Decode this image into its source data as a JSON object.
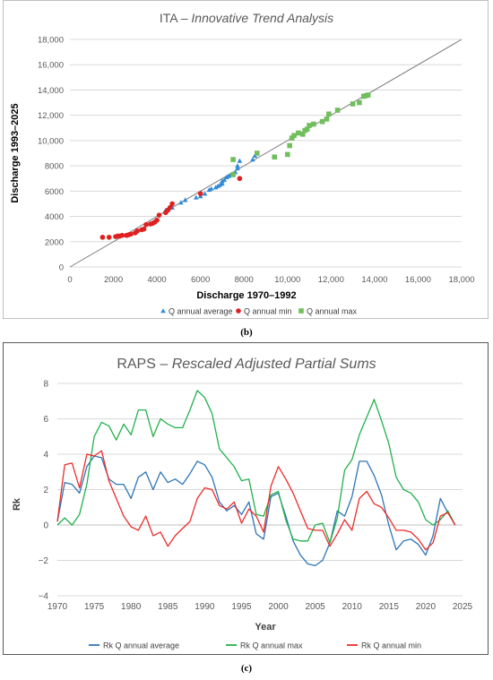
{
  "panels": {
    "b_label": "(b)",
    "c_label": "(c)"
  },
  "chart_data": [
    {
      "type": "scatter",
      "title_prefix": "ITA – ",
      "title_italic": "Innovative Trend Analysis",
      "xlabel": "Discharge 1970–1992",
      "ylabel": "Discharge 1993–2025",
      "xlim": [
        0,
        18000
      ],
      "ylim": [
        0,
        18000
      ],
      "x_ticks": [
        0,
        2000,
        4000,
        6000,
        8000,
        10000,
        12000,
        14000,
        16000,
        18000
      ],
      "y_ticks": [
        0,
        2000,
        4000,
        6000,
        8000,
        10000,
        12000,
        14000,
        16000,
        18000
      ],
      "x_tick_labels": [
        "0",
        "2000",
        "4000",
        "6000",
        "8000",
        "10,000",
        "12,000",
        "14,000",
        "16,000",
        "18,000"
      ],
      "y_tick_labels": [
        "0",
        "2000",
        "4000",
        "6000",
        "8000",
        "10,000",
        "12,000",
        "14,000",
        "16,000",
        "18,000"
      ],
      "grid": "horizontal",
      "reference_line": "1:1",
      "legend_position": "bottom",
      "series": [
        {
          "name": "Q annual average",
          "color": "#2e8bd8",
          "marker": "triangle",
          "points": [
            [
              4400,
              4500
            ],
            [
              4700,
              4700
            ],
            [
              5100,
              5100
            ],
            [
              5300,
              5300
            ],
            [
              5800,
              5500
            ],
            [
              6000,
              5600
            ],
            [
              6200,
              5800
            ],
            [
              6400,
              6100
            ],
            [
              6500,
              6200
            ],
            [
              6700,
              6300
            ],
            [
              6800,
              6400
            ],
            [
              6900,
              6500
            ],
            [
              7000,
              6600
            ],
            [
              7000,
              6800
            ],
            [
              7100,
              6900
            ],
            [
              7200,
              7100
            ],
            [
              7300,
              7200
            ],
            [
              7400,
              7300
            ],
            [
              7600,
              7500
            ],
            [
              7700,
              7800
            ],
            [
              7700,
              8000
            ],
            [
              7800,
              8400
            ],
            [
              8400,
              8500
            ],
            [
              8500,
              8800
            ],
            [
              8600,
              9000
            ]
          ]
        },
        {
          "name": "Q annual min",
          "color": "#e02020",
          "marker": "circle",
          "points": [
            [
              1500,
              2350
            ],
            [
              1800,
              2350
            ],
            [
              2100,
              2400
            ],
            [
              2200,
              2450
            ],
            [
              2300,
              2450
            ],
            [
              2400,
              2500
            ],
            [
              2600,
              2500
            ],
            [
              2700,
              2550
            ],
            [
              2800,
              2600
            ],
            [
              3000,
              2700
            ],
            [
              3100,
              2850
            ],
            [
              3300,
              2950
            ],
            [
              3400,
              3000
            ],
            [
              3500,
              3350
            ],
            [
              3700,
              3400
            ],
            [
              3800,
              3450
            ],
            [
              3900,
              3550
            ],
            [
              4000,
              3700
            ],
            [
              4100,
              4100
            ],
            [
              4400,
              4300
            ],
            [
              4500,
              4500
            ],
            [
              4600,
              4700
            ],
            [
              4700,
              5000
            ],
            [
              6000,
              5800
            ],
            [
              7800,
              7000
            ]
          ]
        },
        {
          "name": "Q annual max",
          "color": "#70bf5c",
          "marker": "square",
          "points": [
            [
              7500,
              8500
            ],
            [
              7500,
              7300
            ],
            [
              8600,
              9000
            ],
            [
              9400,
              8700
            ],
            [
              10000,
              8900
            ],
            [
              10100,
              9600
            ],
            [
              10200,
              10200
            ],
            [
              10300,
              10400
            ],
            [
              10500,
              10600
            ],
            [
              10700,
              10500
            ],
            [
              10800,
              10800
            ],
            [
              10900,
              10900
            ],
            [
              11000,
              11200
            ],
            [
              11200,
              11300
            ],
            [
              11600,
              11500
            ],
            [
              11800,
              11700
            ],
            [
              11900,
              12100
            ],
            [
              12300,
              12400
            ],
            [
              13000,
              12900
            ],
            [
              13300,
              13000
            ],
            [
              13500,
              13500
            ],
            [
              13700,
              13600
            ],
            [
              13600,
              13550
            ]
          ]
        }
      ]
    },
    {
      "type": "line",
      "title_prefix": "RAPS – ",
      "title_italic": "Rescaled Adjusted Partial Sums",
      "xlabel": "Year",
      "ylabel": "Rk",
      "xlim": [
        1970,
        2025
      ],
      "ylim": [
        -4,
        8
      ],
      "x_ticks": [
        1970,
        1975,
        1980,
        1985,
        1990,
        1995,
        2000,
        2005,
        2010,
        2015,
        2020,
        2025
      ],
      "y_ticks": [
        -4,
        -2,
        0,
        2,
        4,
        6,
        8
      ],
      "x_tick_labels": [
        "1970",
        "1975",
        "1980",
        "1985",
        "1990",
        "1995",
        "2000",
        "2005",
        "2010",
        "2015",
        "2020",
        "2025"
      ],
      "y_tick_labels": [
        "−4",
        "−2",
        "0",
        "2",
        "4",
        "6",
        "8"
      ],
      "grid": "horizontal",
      "legend_position": "bottom",
      "x": [
        1970,
        1971,
        1972,
        1973,
        1974,
        1975,
        1976,
        1977,
        1978,
        1979,
        1980,
        1981,
        1982,
        1983,
        1984,
        1985,
        1986,
        1987,
        1988,
        1989,
        1990,
        1991,
        1992,
        1993,
        1994,
        1995,
        1996,
        1997,
        1998,
        1999,
        2000,
        2001,
        2002,
        2003,
        2004,
        2005,
        2006,
        2007,
        2008,
        2009,
        2010,
        2011,
        2012,
        2013,
        2014,
        2015,
        2016,
        2017,
        2018,
        2019,
        2020,
        2021,
        2022,
        2023,
        2024
      ],
      "series": [
        {
          "name": "Rk Q annual average",
          "color": "#2e75b6",
          "values": [
            0.2,
            2.4,
            2.3,
            1.8,
            3.3,
            3.9,
            3.8,
            2.6,
            2.3,
            2.3,
            1.5,
            2.7,
            3.0,
            2.0,
            3.0,
            2.4,
            2.6,
            2.3,
            2.9,
            3.6,
            3.4,
            2.7,
            1.3,
            0.8,
            1.1,
            0.6,
            1.3,
            -0.5,
            -0.8,
            1.6,
            1.8,
            0.5,
            -0.9,
            -1.7,
            -2.2,
            -2.3,
            -2.0,
            -1.0,
            0.8,
            0.5,
            1.6,
            3.6,
            3.6,
            2.8,
            1.7,
            0.0,
            -1.4,
            -0.9,
            -0.8,
            -1.1,
            -1.7,
            -0.6,
            1.5,
            0.7,
            0.0
          ]
        },
        {
          "name": "Rk Q annual max",
          "color": "#22b14c",
          "values": [
            0.0,
            0.4,
            0.0,
            0.6,
            2.3,
            5.0,
            5.8,
            5.6,
            4.8,
            5.7,
            5.1,
            6.5,
            6.5,
            5.0,
            6.0,
            5.7,
            5.5,
            5.5,
            6.5,
            7.6,
            7.2,
            6.3,
            4.3,
            3.8,
            3.3,
            2.5,
            2.6,
            0.6,
            0.5,
            1.7,
            1.9,
            0.3,
            -0.8,
            -0.9,
            -0.9,
            0.0,
            0.1,
            -1.0,
            0.4,
            3.1,
            3.7,
            5.1,
            6.1,
            7.1,
            5.9,
            4.6,
            2.7,
            2.0,
            1.8,
            1.3,
            0.3,
            0.0,
            0.3,
            0.8,
            0.0
          ]
        },
        {
          "name": "Rk Q annual min",
          "color": "#ee2a2a",
          "values": [
            0.2,
            3.4,
            3.5,
            2.1,
            4.0,
            3.9,
            4.2,
            2.5,
            1.5,
            0.5,
            -0.1,
            -0.3,
            0.5,
            -0.6,
            -0.4,
            -1.2,
            -0.6,
            -0.2,
            0.2,
            1.5,
            2.1,
            2.0,
            1.1,
            0.9,
            1.3,
            0.1,
            0.9,
            0.5,
            -0.4,
            2.2,
            3.3,
            2.6,
            1.8,
            0.8,
            -0.2,
            -0.3,
            -0.3,
            -1.2,
            -0.5,
            0.3,
            -0.3,
            1.5,
            1.9,
            1.2,
            1.0,
            0.4,
            -0.3,
            -0.3,
            -0.4,
            -0.8,
            -1.4,
            -1.0,
            0.5,
            0.7,
            0.0
          ]
        }
      ]
    }
  ]
}
